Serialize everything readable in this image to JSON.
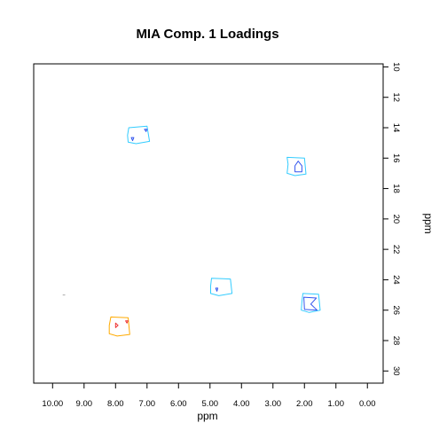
{
  "chart_data": {
    "type": "contour",
    "title": "MIA Comp. 1 Loadings",
    "xlabel": "ppm",
    "ylabel": "ppm",
    "xlim": [
      10.6,
      -0.5
    ],
    "ylim": [
      9.8,
      30.8
    ],
    "x_reversed": true,
    "y_reversed": true,
    "x_ticks": [
      "10.00",
      "9.00",
      "8.00",
      "7.00",
      "6.00",
      "5.00",
      "4.00",
      "3.00",
      "2.00",
      "1.00",
      "0.00"
    ],
    "x_tick_values": [
      10,
      9,
      8,
      7,
      6,
      5,
      4,
      3,
      2,
      1,
      0
    ],
    "y_ticks": [
      "10",
      "12",
      "14",
      "16",
      "18",
      "20",
      "22",
      "24",
      "26",
      "28",
      "30"
    ],
    "y_tick_values": [
      10,
      12,
      14,
      16,
      18,
      20,
      22,
      24,
      26,
      28,
      30
    ],
    "y_axis_side": "right",
    "grid": false,
    "peaks": [
      {
        "id": "peak-1",
        "contours": [
          {
            "color": "#33ccff",
            "points": [
              [
                7.58,
                14.0
              ],
              [
                7.0,
                13.9
              ],
              [
                6.92,
                14.9
              ],
              [
                7.35,
                15.05
              ],
              [
                7.6,
                14.95
              ],
              [
                7.62,
                14.5
              ]
            ]
          },
          {
            "color": "#3355ee",
            "points": [
              [
                7.5,
                14.65
              ],
              [
                7.46,
                14.85
              ],
              [
                7.42,
                14.65
              ]
            ]
          },
          {
            "color": "#3355ee",
            "points": [
              [
                7.08,
                14.1
              ],
              [
                7.03,
                14.25
              ],
              [
                7.0,
                14.1
              ]
            ]
          }
        ]
      },
      {
        "id": "peak-2",
        "contours": [
          {
            "color": "#33ccff",
            "points": [
              [
                2.55,
                15.95
              ],
              [
                2.0,
                16.0
              ],
              [
                1.95,
                17.05
              ],
              [
                2.3,
                17.15
              ],
              [
                2.55,
                17.0
              ],
              [
                2.52,
                16.4
              ]
            ]
          },
          {
            "color": "#3355ee",
            "points": [
              [
                2.3,
                16.5
              ],
              [
                2.2,
                16.2
              ],
              [
                2.08,
                16.5
              ],
              [
                2.08,
                16.9
              ],
              [
                2.3,
                16.9
              ]
            ]
          }
        ]
      },
      {
        "id": "peak-3",
        "contours": [
          {
            "color": "#33ccff",
            "points": [
              [
                4.95,
                23.9
              ],
              [
                4.35,
                23.95
              ],
              [
                4.3,
                24.9
              ],
              [
                4.72,
                25.05
              ],
              [
                4.98,
                24.9
              ],
              [
                4.98,
                24.4
              ]
            ]
          },
          {
            "color": "#3355ee",
            "points": [
              [
                4.82,
                24.55
              ],
              [
                4.78,
                24.75
              ],
              [
                4.75,
                24.55
              ]
            ]
          }
        ]
      },
      {
        "id": "peak-4",
        "contours": [
          {
            "color": "#33ccff",
            "points": [
              [
                2.05,
                24.9
              ],
              [
                1.55,
                24.95
              ],
              [
                1.5,
                26.0
              ],
              [
                1.85,
                26.15
              ],
              [
                2.1,
                26.0
              ],
              [
                2.08,
                25.45
              ]
            ]
          },
          {
            "color": "#3355ee",
            "points": [
              [
                2.02,
                25.15
              ],
              [
                1.62,
                25.2
              ],
              [
                1.8,
                25.6
              ],
              [
                1.6,
                26.0
              ],
              [
                2.0,
                25.95
              ]
            ]
          }
        ]
      },
      {
        "id": "peak-5",
        "contours": [
          {
            "color": "#ffaa00",
            "points": [
              [
                8.15,
                26.45
              ],
              [
                7.6,
                26.5
              ],
              [
                7.55,
                27.6
              ],
              [
                7.95,
                27.7
              ],
              [
                8.2,
                27.55
              ],
              [
                8.2,
                27.0
              ]
            ]
          },
          {
            "color": "#ee3333",
            "points": [
              [
                8.0,
                26.85
              ],
              [
                7.92,
                27.0
              ],
              [
                8.0,
                27.15
              ]
            ]
          },
          {
            "color": "#ee3333",
            "points": [
              [
                7.68,
                26.7
              ],
              [
                7.64,
                26.85
              ],
              [
                7.6,
                26.7
              ]
            ]
          }
        ]
      },
      {
        "id": "speck",
        "contours": [
          {
            "color": "#aaaaaa",
            "points": [
              [
                9.68,
                25.0
              ],
              [
                9.6,
                25.0
              ]
            ]
          }
        ]
      }
    ]
  }
}
